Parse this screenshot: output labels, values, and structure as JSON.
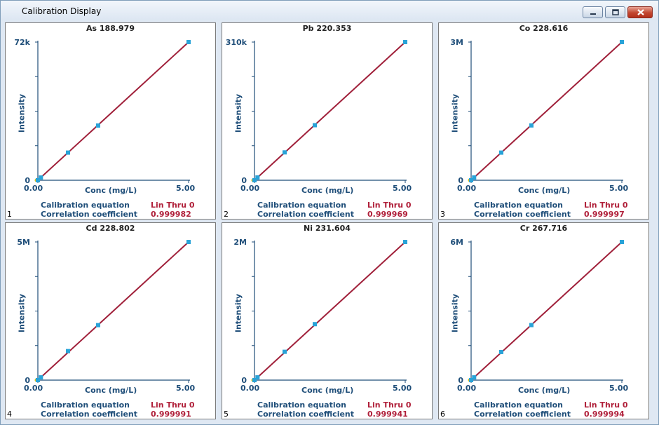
{
  "window": {
    "title": "Calibration Display"
  },
  "colors": {
    "line": "#a0203a",
    "point": "#29a3d8",
    "axis": "#1f4e79",
    "value": "#b0203a"
  },
  "panel_labels": {
    "xlabel": "Conc (mg/L)",
    "ylabel": "Intensity",
    "equation_label": "Calibration equation",
    "correlation_label": "Correlation coefficient"
  },
  "chart_data": [
    {
      "type": "line",
      "index": "1",
      "title": "As 188.979",
      "xlabel": "Conc (mg/L)",
      "ylabel": "Intensity",
      "x_tick_min": "0.00",
      "x_tick_max": "5.00",
      "y_tick_zero": "0",
      "y_tick_max": "72k",
      "xlim": [
        0,
        5
      ],
      "ylim": [
        0,
        72000
      ],
      "points": [
        {
          "x": 0,
          "y": 0
        },
        {
          "x": 0.1,
          "y": 1420
        },
        {
          "x": 1,
          "y": 14400
        },
        {
          "x": 2,
          "y": 28500
        },
        {
          "x": 5,
          "y": 72000
        }
      ],
      "fit": {
        "x": [
          0,
          5
        ],
        "y": [
          0,
          72000
        ]
      },
      "equation": "Lin Thru 0",
      "correlation": "0.999982"
    },
    {
      "type": "line",
      "index": "2",
      "title": "Pb 220.353",
      "xlabel": "Conc (mg/L)",
      "ylabel": "Intensity",
      "x_tick_min": "0.00",
      "x_tick_max": "5.00",
      "y_tick_zero": "0",
      "y_tick_max": "310k",
      "xlim": [
        0,
        5
      ],
      "ylim": [
        0,
        310000
      ],
      "points": [
        {
          "x": 0,
          "y": 0
        },
        {
          "x": 0.1,
          "y": 6200
        },
        {
          "x": 1,
          "y": 62500
        },
        {
          "x": 2,
          "y": 123500
        },
        {
          "x": 5,
          "y": 310000
        }
      ],
      "fit": {
        "x": [
          0,
          5
        ],
        "y": [
          0,
          310000
        ]
      },
      "equation": "Lin Thru 0",
      "correlation": "0.999969"
    },
    {
      "type": "line",
      "index": "3",
      "title": "Co 228.616",
      "xlabel": "Conc (mg/L)",
      "ylabel": "Intensity",
      "x_tick_min": "0.00",
      "x_tick_max": "5.00",
      "y_tick_zero": "0",
      "y_tick_max": "3M",
      "xlim": [
        0,
        5
      ],
      "ylim": [
        0,
        3000000
      ],
      "points": [
        {
          "x": 0,
          "y": 0
        },
        {
          "x": 0.1,
          "y": 60000
        },
        {
          "x": 1,
          "y": 600000
        },
        {
          "x": 2,
          "y": 1190000
        },
        {
          "x": 5,
          "y": 3000000
        }
      ],
      "fit": {
        "x": [
          0,
          5
        ],
        "y": [
          0,
          3000000
        ]
      },
      "equation": "Lin Thru 0",
      "correlation": "0.999997"
    },
    {
      "type": "line",
      "index": "4",
      "title": "Cd 228.802",
      "xlabel": "Conc (mg/L)",
      "ylabel": "Intensity",
      "x_tick_min": "0.00",
      "x_tick_max": "5.00",
      "y_tick_zero": "0",
      "y_tick_max": "5M",
      "xlim": [
        0,
        5
      ],
      "ylim": [
        0,
        5000000
      ],
      "points": [
        {
          "x": 0,
          "y": 0
        },
        {
          "x": 0.1,
          "y": 100000
        },
        {
          "x": 1,
          "y": 1050000
        },
        {
          "x": 2,
          "y": 1990000
        },
        {
          "x": 5,
          "y": 5000000
        }
      ],
      "fit": {
        "x": [
          0,
          5
        ],
        "y": [
          0,
          5000000
        ]
      },
      "equation": "Lin Thru 0",
      "correlation": "0.999991"
    },
    {
      "type": "line",
      "index": "5",
      "title": "Ni 231.604",
      "xlabel": "Conc (mg/L)",
      "ylabel": "Intensity",
      "x_tick_min": "0.00",
      "x_tick_max": "5.00",
      "y_tick_zero": "0",
      "y_tick_max": "2M",
      "xlim": [
        0,
        5
      ],
      "ylim": [
        0,
        2000000
      ],
      "points": [
        {
          "x": 0,
          "y": 0
        },
        {
          "x": 0.1,
          "y": 40000
        },
        {
          "x": 1,
          "y": 410000
        },
        {
          "x": 2,
          "y": 810000
        },
        {
          "x": 5,
          "y": 2000000
        }
      ],
      "fit": {
        "x": [
          0,
          5
        ],
        "y": [
          0,
          2000000
        ]
      },
      "equation": "Lin Thru 0",
      "correlation": "0.999941"
    },
    {
      "type": "line",
      "index": "6",
      "title": "Cr 267.716",
      "xlabel": "Conc (mg/L)",
      "ylabel": "Intensity",
      "x_tick_min": "0.00",
      "x_tick_max": "5.00",
      "y_tick_zero": "0",
      "y_tick_max": "6M",
      "xlim": [
        0,
        5
      ],
      "ylim": [
        0,
        6000000
      ],
      "points": [
        {
          "x": 0,
          "y": 0
        },
        {
          "x": 0.1,
          "y": 120000
        },
        {
          "x": 1,
          "y": 1220000
        },
        {
          "x": 2,
          "y": 2390000
        },
        {
          "x": 5,
          "y": 6000000
        }
      ],
      "fit": {
        "x": [
          0,
          5
        ],
        "y": [
          0,
          6000000
        ]
      },
      "equation": "Lin Thru 0",
      "correlation": "0.999994"
    }
  ]
}
